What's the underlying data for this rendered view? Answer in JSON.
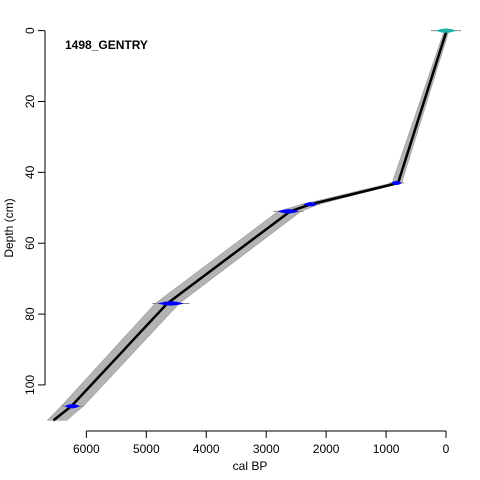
{
  "chart_data": {
    "type": "line",
    "title": "1498_GENTRY",
    "xlabel": "cal BP",
    "ylabel": "Depth (cm)",
    "x_reversed": true,
    "y_reversed": true,
    "xlim": [
      6690,
      -300
    ],
    "ylim": [
      -3,
      113
    ],
    "x_ticks": [
      6000,
      5000,
      4000,
      3000,
      2000,
      1000,
      0
    ],
    "x_tick_labels": [
      "6000",
      "5000",
      "4000",
      "3000",
      "2000",
      "1000",
      "0"
    ],
    "y_ticks": [
      0,
      20,
      40,
      60,
      80,
      100
    ],
    "y_tick_labels": [
      "0",
      "20",
      "40",
      "60",
      "80",
      "100"
    ],
    "grid": false,
    "colors": {
      "model_line": "#000000",
      "uncertainty_band": "#b3b3b3",
      "calibrated_dates": "#0000ff",
      "surface_date": "#20b2aa",
      "date_whiskers": "#888888"
    },
    "series": [
      {
        "name": "",
        "depth": [
          0,
          43,
          49,
          51,
          77,
          106,
          110
        ],
        "age": [
          -10,
          800,
          2250,
          2600,
          4650,
          6250,
          6550
        ],
        "band_lower": [
          -50,
          740,
          2120,
          2420,
          4450,
          6050,
          6330
        ],
        "band_upper": [
          30,
          900,
          2400,
          2800,
          4850,
          6420,
          6650
        ]
      }
    ],
    "dates": [
      {
        "depth": 0,
        "age": -10,
        "min": -250,
        "max": 250,
        "kind": "surface"
      },
      {
        "depth": 43,
        "age": 810,
        "min": 700,
        "max": 950,
        "kind": "radiocarbon"
      },
      {
        "depth": 49,
        "age": 2250,
        "min": 2100,
        "max": 2420,
        "kind": "radiocarbon"
      },
      {
        "depth": 51,
        "age": 2620,
        "min": 2380,
        "max": 2880,
        "kind": "radiocarbon"
      },
      {
        "depth": 77,
        "age": 4550,
        "min": 4280,
        "max": 4900,
        "kind": "radiocarbon"
      },
      {
        "depth": 106,
        "age": 6230,
        "min": 6050,
        "max": 6420,
        "kind": "radiocarbon"
      }
    ]
  }
}
